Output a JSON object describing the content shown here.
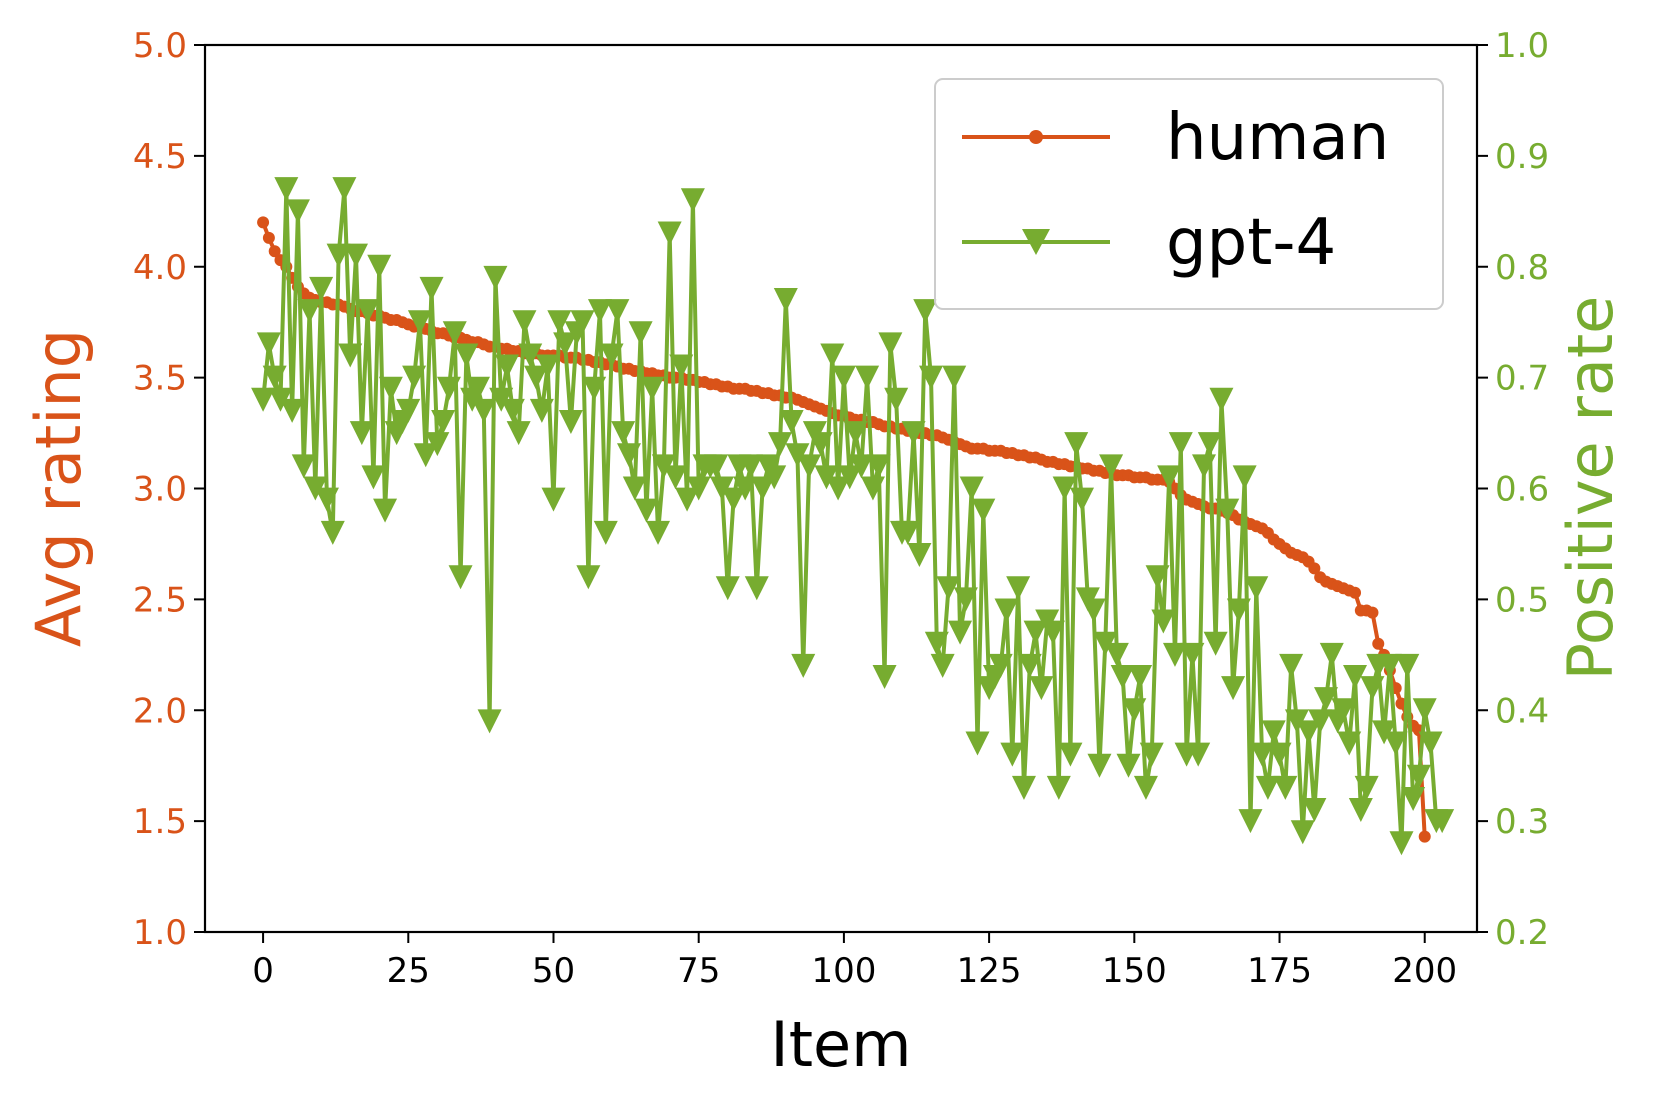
{
  "chart_data": {
    "type": "line",
    "xlabel": "Item",
    "xlim": [
      -10,
      209
    ],
    "xticks": [
      0,
      25,
      50,
      75,
      100,
      125,
      150,
      175,
      200
    ],
    "y_left": {
      "label": "Avg rating",
      "lim": [
        1.0,
        5.0
      ],
      "ticks": [
        "1.0",
        "1.5",
        "2.0",
        "2.5",
        "3.0",
        "3.5",
        "4.0",
        "4.5",
        "5.0"
      ],
      "color": "#d95319"
    },
    "y_right": {
      "label": "Positive rate",
      "lim": [
        0.2,
        1.0
      ],
      "ticks": [
        "0.2",
        "0.3",
        "0.4",
        "0.5",
        "0.6",
        "0.7",
        "0.8",
        "0.9",
        "1.0"
      ],
      "color": "#77ac30"
    },
    "legend": {
      "position": "top-right"
    },
    "grid": false,
    "series": [
      {
        "name": "human",
        "axis": "left",
        "marker": "dot",
        "color": "#d95319",
        "x_start": 0,
        "values": [
          4.2,
          4.13,
          4.07,
          4.03,
          4.0,
          3.95,
          3.91,
          3.88,
          3.86,
          3.85,
          3.84,
          3.84,
          3.83,
          3.83,
          3.82,
          3.81,
          3.8,
          3.8,
          3.79,
          3.78,
          3.78,
          3.77,
          3.76,
          3.76,
          3.75,
          3.74,
          3.73,
          3.73,
          3.72,
          3.71,
          3.7,
          3.7,
          3.69,
          3.68,
          3.68,
          3.67,
          3.66,
          3.66,
          3.65,
          3.64,
          3.64,
          3.63,
          3.63,
          3.62,
          3.62,
          3.61,
          3.61,
          3.61,
          3.6,
          3.6,
          3.6,
          3.6,
          3.59,
          3.59,
          3.59,
          3.58,
          3.58,
          3.57,
          3.57,
          3.56,
          3.56,
          3.55,
          3.54,
          3.54,
          3.53,
          3.53,
          3.52,
          3.52,
          3.51,
          3.51,
          3.5,
          3.5,
          3.5,
          3.49,
          3.49,
          3.48,
          3.48,
          3.47,
          3.47,
          3.46,
          3.46,
          3.45,
          3.45,
          3.45,
          3.44,
          3.44,
          3.43,
          3.43,
          3.42,
          3.42,
          3.41,
          3.41,
          3.4,
          3.39,
          3.38,
          3.37,
          3.36,
          3.35,
          3.34,
          3.33,
          3.33,
          3.32,
          3.31,
          3.31,
          3.3,
          3.3,
          3.29,
          3.28,
          3.28,
          3.27,
          3.27,
          3.26,
          3.26,
          3.25,
          3.25,
          3.24,
          3.24,
          3.23,
          3.22,
          3.21,
          3.2,
          3.19,
          3.18,
          3.18,
          3.18,
          3.17,
          3.17,
          3.17,
          3.16,
          3.16,
          3.15,
          3.15,
          3.14,
          3.14,
          3.13,
          3.12,
          3.12,
          3.11,
          3.11,
          3.1,
          3.1,
          3.09,
          3.09,
          3.08,
          3.08,
          3.07,
          3.07,
          3.06,
          3.06,
          3.06,
          3.05,
          3.05,
          3.05,
          3.04,
          3.04,
          3.04,
          3.03,
          3.0,
          2.97,
          2.95,
          2.94,
          2.93,
          2.92,
          2.91,
          2.91,
          2.9,
          2.89,
          2.88,
          2.86,
          2.85,
          2.84,
          2.83,
          2.82,
          2.8,
          2.77,
          2.75,
          2.73,
          2.71,
          2.7,
          2.69,
          2.67,
          2.64,
          2.6,
          2.58,
          2.57,
          2.56,
          2.55,
          2.54,
          2.53,
          2.45,
          2.45,
          2.44,
          2.3,
          2.25,
          2.18,
          2.1,
          2.03,
          1.97,
          1.93,
          1.91,
          1.43
        ]
      },
      {
        "name": "gpt-4",
        "axis": "right",
        "marker": "triangle-down",
        "color": "#77ac30",
        "x_start": 0,
        "values": [
          0.68,
          0.73,
          0.7,
          0.68,
          0.87,
          0.67,
          0.85,
          0.62,
          0.76,
          0.6,
          0.78,
          0.59,
          0.56,
          0.81,
          0.87,
          0.72,
          0.81,
          0.65,
          0.76,
          0.61,
          0.8,
          0.58,
          0.69,
          0.65,
          0.66,
          0.67,
          0.7,
          0.75,
          0.63,
          0.78,
          0.64,
          0.66,
          0.69,
          0.74,
          0.52,
          0.72,
          0.68,
          0.69,
          0.67,
          0.39,
          0.79,
          0.68,
          0.71,
          0.67,
          0.65,
          0.75,
          0.72,
          0.7,
          0.67,
          0.71,
          0.59,
          0.75,
          0.73,
          0.66,
          0.74,
          0.75,
          0.52,
          0.69,
          0.76,
          0.56,
          0.72,
          0.76,
          0.65,
          0.63,
          0.6,
          0.74,
          0.58,
          0.69,
          0.56,
          0.62,
          0.83,
          0.61,
          0.71,
          0.59,
          0.86,
          0.6,
          0.62,
          0.62,
          0.62,
          0.6,
          0.51,
          0.59,
          0.62,
          0.6,
          0.62,
          0.51,
          0.6,
          0.62,
          0.61,
          0.64,
          0.77,
          0.66,
          0.63,
          0.44,
          0.62,
          0.65,
          0.64,
          0.61,
          0.72,
          0.6,
          0.7,
          0.61,
          0.65,
          0.62,
          0.7,
          0.6,
          0.62,
          0.43,
          0.73,
          0.68,
          0.56,
          0.56,
          0.65,
          0.54,
          0.76,
          0.7,
          0.46,
          0.44,
          0.51,
          0.7,
          0.47,
          0.5,
          0.6,
          0.37,
          0.58,
          0.42,
          0.43,
          0.44,
          0.49,
          0.36,
          0.51,
          0.33,
          0.44,
          0.47,
          0.42,
          0.48,
          0.47,
          0.33,
          0.6,
          0.36,
          0.64,
          0.59,
          0.5,
          0.49,
          0.35,
          0.46,
          0.62,
          0.45,
          0.43,
          0.35,
          0.4,
          0.43,
          0.33,
          0.36,
          0.52,
          0.48,
          0.61,
          0.45,
          0.64,
          0.36,
          0.45,
          0.36,
          0.62,
          0.64,
          0.46,
          0.68,
          0.58,
          0.42,
          0.49,
          0.61,
          0.3,
          0.51,
          0.36,
          0.33,
          0.38,
          0.36,
          0.33,
          0.44,
          0.39,
          0.29,
          0.38,
          0.31,
          0.39,
          0.41,
          0.45,
          0.39,
          0.4,
          0.37,
          0.43,
          0.31,
          0.33,
          0.42,
          0.44,
          0.38,
          0.44,
          0.37,
          0.28,
          0.44,
          0.32,
          0.34,
          0.4,
          0.37,
          0.3,
          0.3
        ]
      }
    ]
  }
}
